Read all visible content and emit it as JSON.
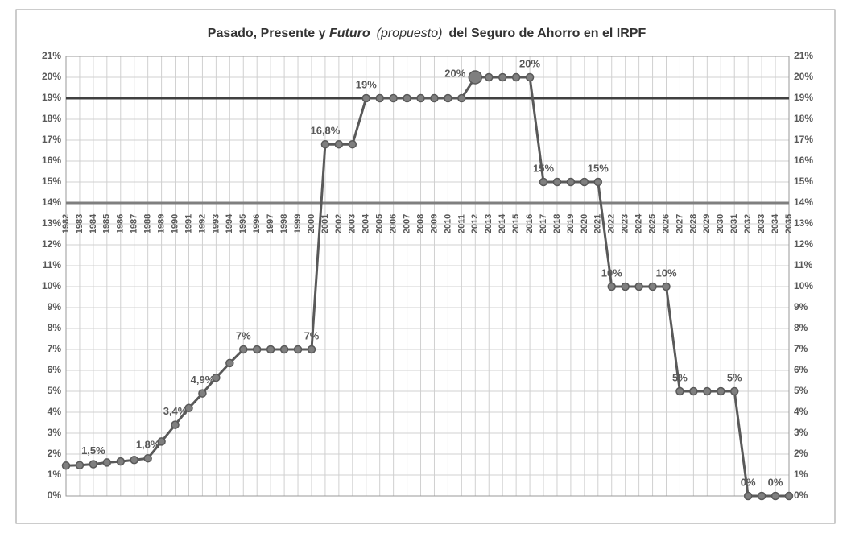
{
  "chart_data": {
    "type": "line",
    "title": [
      "Pasado, Presente y ",
      "Futuro",
      "(propuesto)",
      "del Seguro de Ahorro en el IRPF"
    ],
    "categories": [
      "1982",
      "1983",
      "1984",
      "1985",
      "1986",
      "1987",
      "1988",
      "1989",
      "1990",
      "1991",
      "1992",
      "1993",
      "1994",
      "1995",
      "1996",
      "1997",
      "1998",
      "1999",
      "2000",
      "2001",
      "2002",
      "2003",
      "2004",
      "2005",
      "2006",
      "2007",
      "2008",
      "2009",
      "2010",
      "2011",
      "2012",
      "2013",
      "2014",
      "2015",
      "2016",
      "2017",
      "2018",
      "2019",
      "2020",
      "2021",
      "2022",
      "2023",
      "2024",
      "2025",
      "2026",
      "2027",
      "2028",
      "2029",
      "2030",
      "2031",
      "2032",
      "2033",
      "2034",
      "2035"
    ],
    "series": [
      {
        "name": "Seguro de Ahorro",
        "color": "#595959",
        "values": [
          1.45,
          1.47,
          1.52,
          1.6,
          1.65,
          1.72,
          1.8,
          2.6,
          3.4,
          4.2,
          4.9,
          5.65,
          6.35,
          7,
          7,
          7,
          7,
          7,
          7,
          16.8,
          16.8,
          16.8,
          19,
          19,
          19,
          19,
          19,
          19,
          19,
          19,
          20,
          20,
          20,
          20,
          20,
          15,
          15,
          15,
          15,
          15,
          10,
          10,
          10,
          10,
          10,
          5,
          5,
          5,
          5,
          5,
          0,
          0,
          0,
          0
        ],
        "value_labels": [
          null,
          null,
          "1,5%",
          null,
          null,
          null,
          "1,8%",
          null,
          "3,4%",
          null,
          "4,9%",
          null,
          null,
          "7%",
          null,
          null,
          null,
          null,
          "7%",
          "16,8%",
          null,
          null,
          "19%",
          null,
          null,
          null,
          null,
          null,
          null,
          null,
          "20%",
          null,
          null,
          null,
          "20%",
          "15%",
          null,
          null,
          null,
          "15%",
          "10%",
          null,
          null,
          null,
          "10%",
          "5%",
          null,
          null,
          null,
          "5%",
          "0%",
          null,
          "0%",
          null
        ]
      }
    ],
    "highlight": "2012",
    "ylim": [
      0,
      21
    ],
    "yticks": [
      {
        "value": 0,
        "label": "0%"
      },
      {
        "value": 1,
        "label": "1%"
      },
      {
        "value": 2,
        "label": "2%"
      },
      {
        "value": 3,
        "label": "3%"
      },
      {
        "value": 4,
        "label": "4%"
      },
      {
        "value": 5,
        "label": "5%"
      },
      {
        "value": 6,
        "label": "6%"
      },
      {
        "value": 7,
        "label": "7%"
      },
      {
        "value": 8,
        "label": "8%"
      },
      {
        "value": 9,
        "label": "9%"
      },
      {
        "value": 10,
        "label": "10%"
      },
      {
        "value": 11,
        "label": "11%"
      },
      {
        "value": 12,
        "label": "12%"
      },
      {
        "value": 13,
        "label": "13%"
      },
      {
        "value": 14,
        "label": "14%"
      },
      {
        "value": 15,
        "label": "15%"
      },
      {
        "value": 16,
        "label": "16%"
      },
      {
        "value": 17,
        "label": "17%"
      },
      {
        "value": 18,
        "label": "18%"
      },
      {
        "value": 19,
        "label": "19%"
      },
      {
        "value": 20,
        "label": "20%"
      },
      {
        "value": 21,
        "label": "21%"
      }
    ],
    "reference_lines": [
      {
        "value": 19,
        "color": "#404040"
      },
      {
        "value": 14,
        "color": "#7f7f7f"
      }
    ],
    "grid": true
  }
}
